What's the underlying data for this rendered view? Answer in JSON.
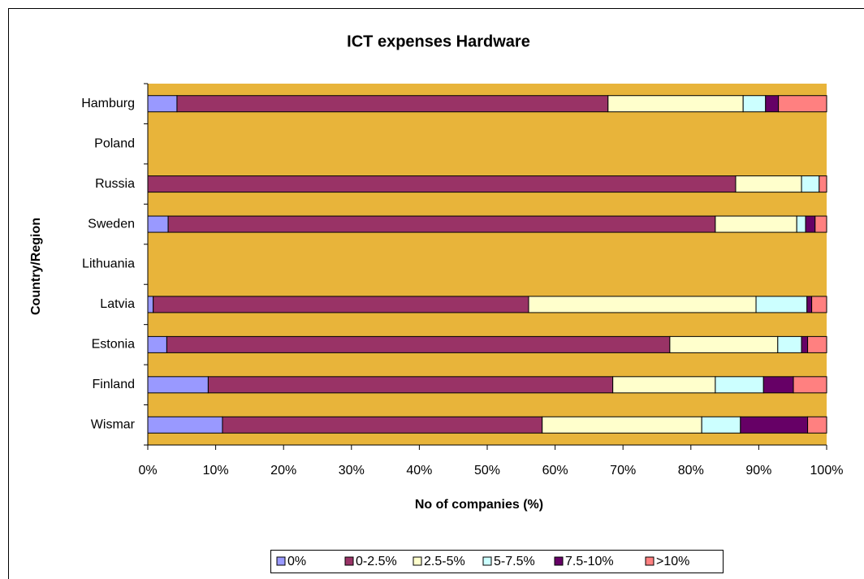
{
  "chart_data": {
    "type": "stacked_barh",
    "title": "ICT expenses Hardware",
    "xlabel": "No of companies (%)",
    "ylabel": "Country/Region",
    "categories": [
      "Hamburg",
      "Poland",
      "Russia",
      "Sweden",
      "Lithuania",
      "Latvia",
      "Estonia",
      "Finland",
      "Wismar"
    ],
    "series": [
      {
        "name": "0%",
        "color": "#9999ff",
        "values": [
          4.3,
          null,
          0,
          3.0,
          null,
          0.8,
          2.8,
          8.9,
          11.0
        ]
      },
      {
        "name": "0-2.5%",
        "color": "#993366",
        "values": [
          63.5,
          null,
          86.6,
          80.6,
          null,
          55.3,
          74.1,
          59.6,
          47.1
        ]
      },
      {
        "name": "2.5-5%",
        "color": "#ffffcc",
        "values": [
          19.9,
          null,
          9.7,
          12.0,
          null,
          33.5,
          15.9,
          15.1,
          23.5
        ]
      },
      {
        "name": "5-7.5%",
        "color": "#ccffff",
        "values": [
          3.3,
          null,
          2.6,
          1.3,
          null,
          7.5,
          3.5,
          7.1,
          5.7
        ]
      },
      {
        "name": "7.5-10%",
        "color": "#660066",
        "values": [
          1.9,
          null,
          0,
          1.4,
          null,
          0.7,
          0.9,
          4.4,
          9.9
        ]
      },
      {
        "name": ">10%",
        "color": "#ff8080",
        "values": [
          7.1,
          null,
          1.1,
          1.7,
          null,
          2.2,
          2.8,
          4.9,
          2.8
        ]
      }
    ],
    "xlim": [
      0,
      100
    ],
    "xticks": [
      {
        "value": 0,
        "label": "0%"
      },
      {
        "value": 10,
        "label": "10%"
      },
      {
        "value": 20,
        "label": "20%"
      },
      {
        "value": 30,
        "label": "30%"
      },
      {
        "value": 40,
        "label": "40%"
      },
      {
        "value": 50,
        "label": "50%"
      },
      {
        "value": 60,
        "label": "60%"
      },
      {
        "value": 70,
        "label": "70%"
      },
      {
        "value": 80,
        "label": "80%"
      },
      {
        "value": 90,
        "label": "90%"
      },
      {
        "value": 100,
        "label": "100%"
      }
    ],
    "plot_background": "#e8b43a",
    "legend": "bottom"
  }
}
